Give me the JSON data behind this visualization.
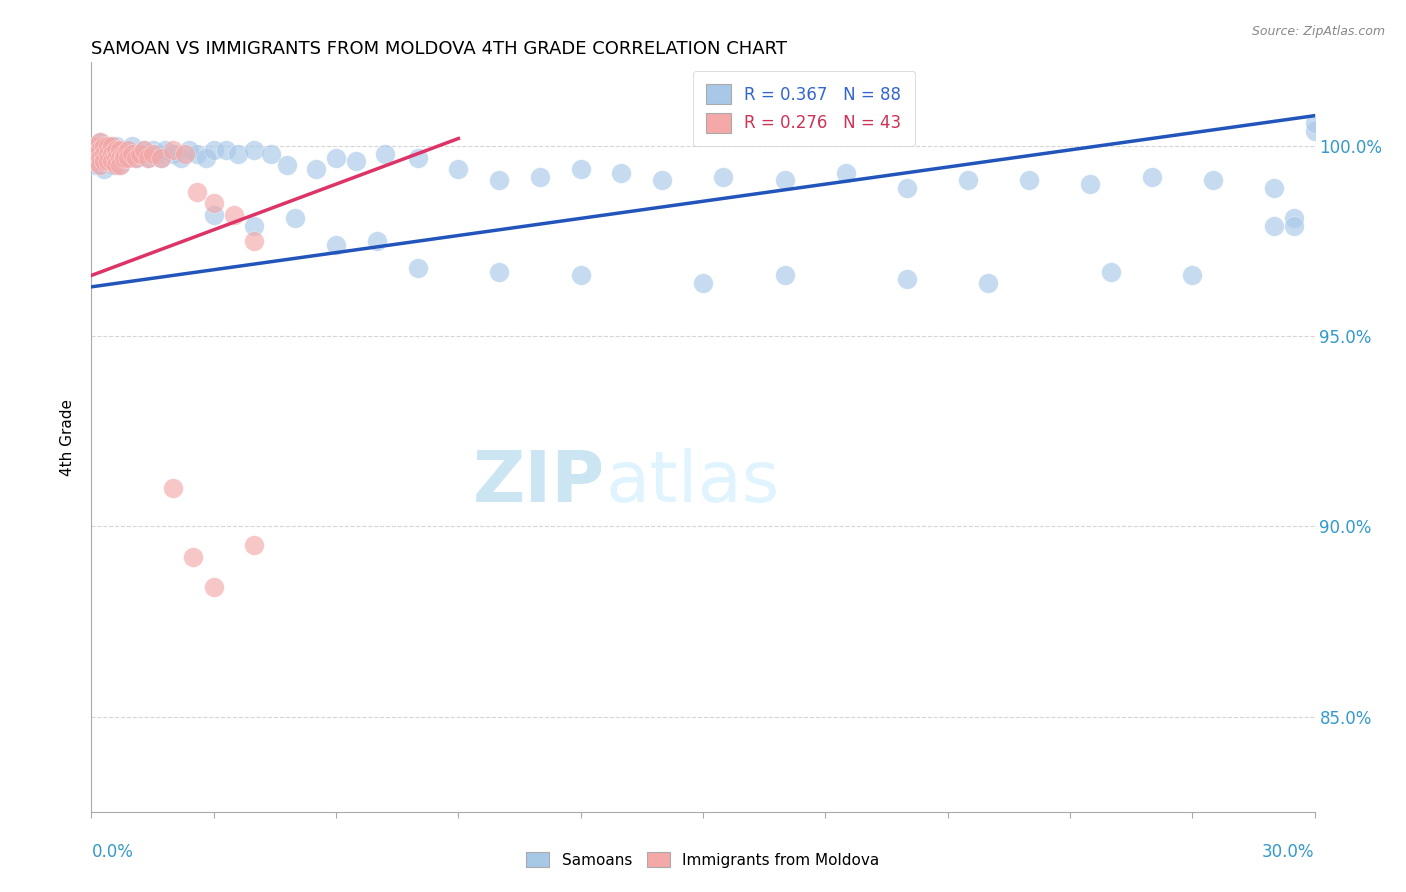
{
  "title": "SAMOAN VS IMMIGRANTS FROM MOLDOVA 4TH GRADE CORRELATION CHART",
  "source_text": "Source: ZipAtlas.com",
  "ylabel": "4th Grade",
  "ytick_labels": [
    "85.0%",
    "90.0%",
    "95.0%",
    "100.0%"
  ],
  "ytick_values": [
    0.85,
    0.9,
    0.95,
    1.0
  ],
  "xlim": [
    0.0,
    0.3
  ],
  "ylim": [
    0.825,
    1.022
  ],
  "legend_blue_label": "R = 0.367   N = 88",
  "legend_pink_label": "R = 0.276   N = 43",
  "legend_samoans": "Samoans",
  "legend_moldova": "Immigrants from Moldova",
  "blue_color": "#A8C8E8",
  "pink_color": "#F4A8A8",
  "trendline_blue_color": "#2255BB",
  "trendline_pink_color": "#DD3366",
  "watermark_zip": "ZIP",
  "watermark_atlas": "atlas",
  "background_color": "#FFFFFF",
  "blue_trendline_x0": 0.0,
  "blue_trendline_y0": 0.963,
  "blue_trendline_x1": 0.3,
  "blue_trendline_y1": 1.008,
  "pink_trendline_x0": 0.0,
  "pink_trendline_y0": 0.966,
  "pink_trendline_x1": 0.09,
  "pink_trendline_y1": 1.002,
  "blue_x": [
    0.001,
    0.001,
    0.001,
    0.002,
    0.002,
    0.002,
    0.002,
    0.003,
    0.003,
    0.003,
    0.003,
    0.004,
    0.004,
    0.004,
    0.005,
    0.005,
    0.005,
    0.006,
    0.006,
    0.006,
    0.007,
    0.007,
    0.007,
    0.008,
    0.008,
    0.009,
    0.009,
    0.01,
    0.01,
    0.011,
    0.012,
    0.013,
    0.014,
    0.015,
    0.016,
    0.017,
    0.018,
    0.02,
    0.022,
    0.024,
    0.026,
    0.028,
    0.03,
    0.033,
    0.036,
    0.04,
    0.044,
    0.048,
    0.055,
    0.06,
    0.065,
    0.072,
    0.08,
    0.09,
    0.1,
    0.11,
    0.12,
    0.13,
    0.14,
    0.155,
    0.17,
    0.185,
    0.2,
    0.215,
    0.23,
    0.245,
    0.26,
    0.275,
    0.29,
    0.03,
    0.04,
    0.05,
    0.06,
    0.07,
    0.08,
    0.1,
    0.12,
    0.15,
    0.17,
    0.2,
    0.22,
    0.25,
    0.27,
    0.29,
    0.295,
    0.3,
    0.3,
    0.295
  ],
  "blue_y": [
    0.999,
    0.997,
    0.995,
    1.001,
    0.999,
    0.997,
    0.995,
    1.0,
    0.998,
    0.996,
    0.994,
    1.0,
    0.998,
    0.996,
    0.999,
    0.997,
    0.995,
    1.0,
    0.998,
    0.996,
    0.999,
    0.997,
    0.995,
    0.999,
    0.997,
    0.999,
    0.997,
    1.0,
    0.998,
    0.997,
    0.998,
    0.999,
    0.997,
    0.999,
    0.998,
    0.997,
    0.999,
    0.998,
    0.997,
    0.999,
    0.998,
    0.997,
    0.999,
    0.999,
    0.998,
    0.999,
    0.998,
    0.995,
    0.994,
    0.997,
    0.996,
    0.998,
    0.997,
    0.994,
    0.991,
    0.992,
    0.994,
    0.993,
    0.991,
    0.992,
    0.991,
    0.993,
    0.989,
    0.991,
    0.991,
    0.99,
    0.992,
    0.991,
    0.989,
    0.982,
    0.979,
    0.981,
    0.974,
    0.975,
    0.968,
    0.967,
    0.966,
    0.964,
    0.966,
    0.965,
    0.964,
    0.967,
    0.966,
    0.979,
    0.981,
    1.004,
    1.006,
    0.979
  ],
  "pink_x": [
    0.001,
    0.001,
    0.001,
    0.002,
    0.002,
    0.002,
    0.002,
    0.003,
    0.003,
    0.003,
    0.004,
    0.004,
    0.004,
    0.005,
    0.005,
    0.005,
    0.006,
    0.006,
    0.006,
    0.007,
    0.007,
    0.007,
    0.008,
    0.008,
    0.009,
    0.009,
    0.01,
    0.011,
    0.012,
    0.013,
    0.014,
    0.015,
    0.017,
    0.02,
    0.023,
    0.026,
    0.03,
    0.035,
    0.04,
    0.02,
    0.025,
    0.03,
    0.04
  ],
  "pink_y": [
    1.0,
    0.998,
    0.996,
    1.001,
    0.999,
    0.997,
    0.995,
    1.0,
    0.998,
    0.996,
    1.0,
    0.998,
    0.996,
    1.0,
    0.998,
    0.996,
    0.999,
    0.997,
    0.995,
    0.999,
    0.997,
    0.995,
    0.998,
    0.997,
    0.999,
    0.997,
    0.998,
    0.997,
    0.998,
    0.999,
    0.997,
    0.998,
    0.997,
    0.999,
    0.998,
    0.988,
    0.985,
    0.982,
    0.975,
    0.91,
    0.892,
    0.884,
    0.895
  ]
}
